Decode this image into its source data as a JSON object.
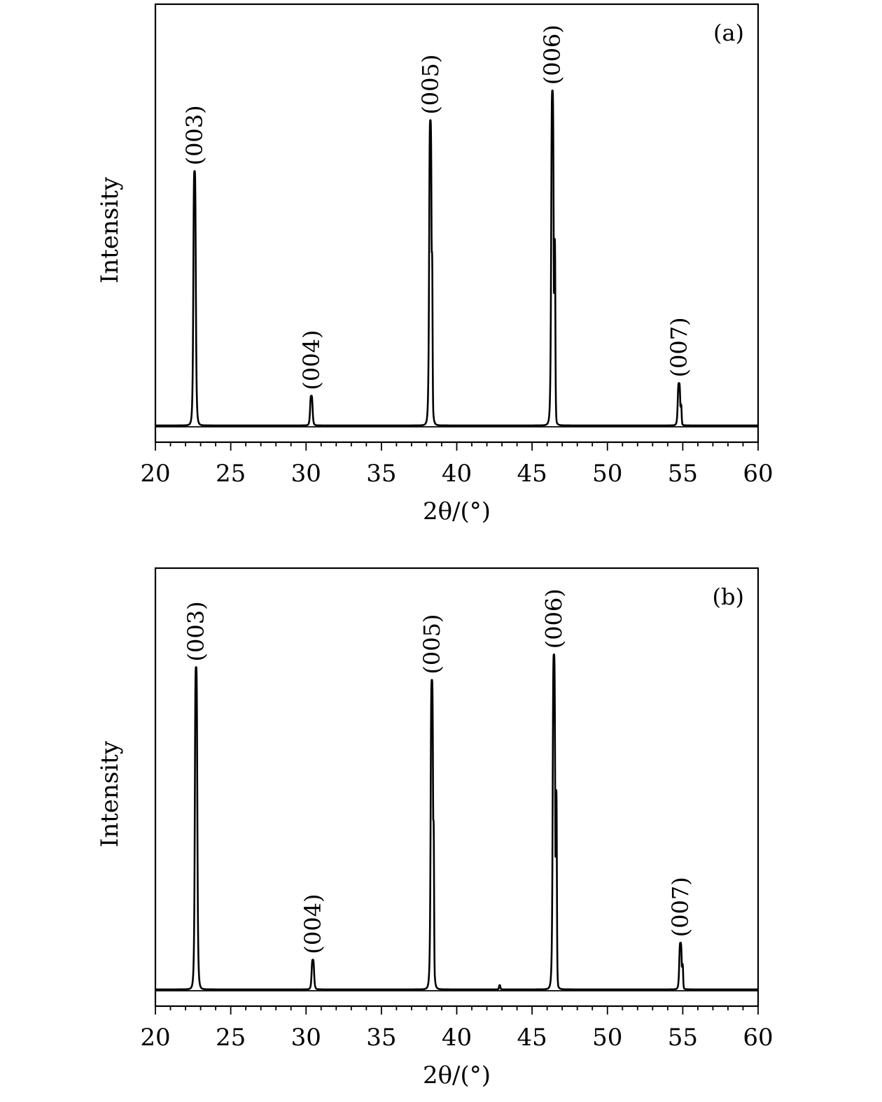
{
  "chart_data": [
    {
      "type": "line",
      "panel_label": "(a)",
      "xlabel": "2θ/(°)",
      "ylabel": "Intensity",
      "xlim": [
        20,
        60
      ],
      "ylim": [
        0,
        100
      ],
      "x_ticks": [
        20,
        25,
        30,
        35,
        40,
        45,
        50,
        55,
        60
      ],
      "grid": false,
      "baseline": 4,
      "peaks": [
        {
          "label": "(003)",
          "x": 22.6,
          "y": 64
        },
        {
          "label": "(004)",
          "x": 30.35,
          "y": 11
        },
        {
          "label": "(005)",
          "x": 38.25,
          "y": 76
        },
        {
          "label": "(006)",
          "x": 46.35,
          "y": 83
        },
        {
          "label": "(007)",
          "x": 54.75,
          "y": 14
        }
      ],
      "shoulders": [
        {
          "x": 38.35,
          "y": 45
        },
        {
          "x": 46.5,
          "y": 48
        },
        {
          "x": 54.88,
          "y": 9
        }
      ]
    },
    {
      "type": "line",
      "panel_label": "(b)",
      "xlabel": "2θ/(°)",
      "ylabel": "Intensity",
      "xlim": [
        20,
        60
      ],
      "ylim": [
        0,
        100
      ],
      "x_ticks": [
        20,
        25,
        30,
        35,
        40,
        45,
        50,
        55,
        60
      ],
      "grid": false,
      "baseline": 4,
      "peaks": [
        {
          "label": "(003)",
          "x": 22.7,
          "y": 80
        },
        {
          "label": "(004)",
          "x": 30.45,
          "y": 11
        },
        {
          "label": "(005)",
          "x": 38.35,
          "y": 77
        },
        {
          "label": "(006)",
          "x": 46.45,
          "y": 83
        },
        {
          "label": "(007)",
          "x": 54.85,
          "y": 15
        }
      ],
      "shoulders": [
        {
          "x": 38.45,
          "y": 44
        },
        {
          "x": 46.6,
          "y": 51
        },
        {
          "x": 54.98,
          "y": 10
        },
        {
          "x": 42.85,
          "y": 5
        }
      ]
    }
  ]
}
